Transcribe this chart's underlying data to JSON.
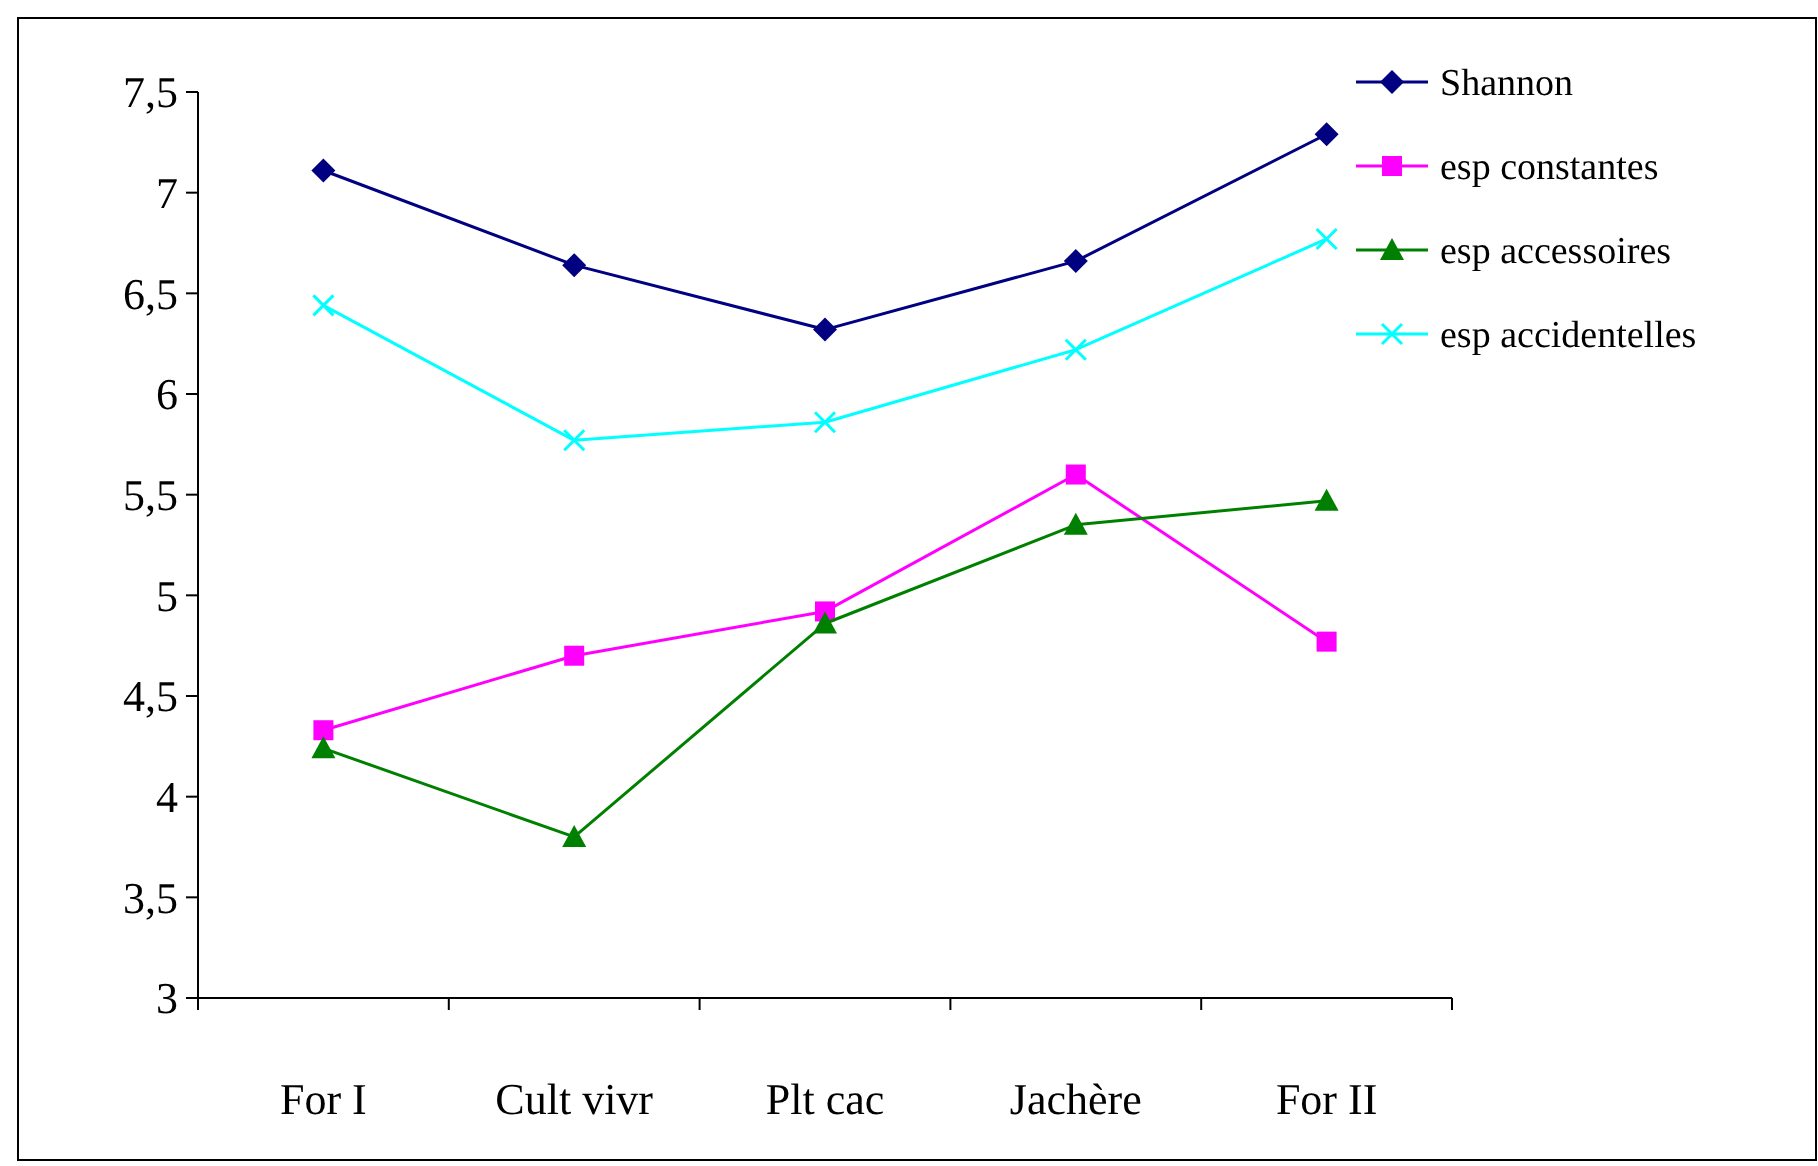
{
  "chart_data": {
    "type": "line",
    "categories": [
      "For I",
      "Cult vivr",
      "Plt cac",
      "Jachère",
      "For II"
    ],
    "series": [
      {
        "name": "Shannon",
        "color": "#000080",
        "marker": "diamond",
        "values": [
          7.11,
          6.64,
          6.32,
          6.66,
          7.29
        ]
      },
      {
        "name": "esp constantes",
        "color": "#ff00ff",
        "marker": "square",
        "values": [
          4.33,
          4.7,
          4.92,
          5.6,
          4.77
        ]
      },
      {
        "name": "esp accessoires",
        "color": "#008000",
        "marker": "triangle",
        "values": [
          4.24,
          3.8,
          4.86,
          5.35,
          5.47
        ]
      },
      {
        "name": "esp accidentelles",
        "color": "#00ffff",
        "marker": "cross",
        "values": [
          6.44,
          5.77,
          5.86,
          6.22,
          6.77
        ]
      }
    ],
    "ylim": [
      3,
      7.5
    ],
    "yticks": [
      3,
      {
        "value": 3.5,
        "label": "3,5"
      },
      4,
      {
        "value": 4.5,
        "label": "4,5"
      },
      5,
      {
        "value": 5.5,
        "label": "5,5"
      },
      6,
      {
        "value": 6.5,
        "label": "6,5"
      },
      7,
      {
        "value": 7.5,
        "label": "7,5"
      }
    ],
    "grid": false,
    "legend": "top right"
  }
}
